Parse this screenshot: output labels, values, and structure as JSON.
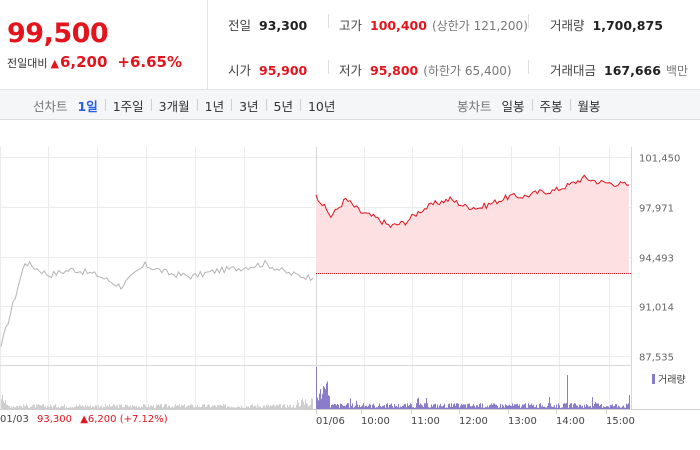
{
  "summary": {
    "price": "99,500",
    "change_label": "전일대비",
    "change_arrow": "▲",
    "change_amount": "6,200",
    "change_pct": "+6.65%",
    "stats": [
      {
        "label": "전일",
        "value": "93,300",
        "sub": ""
      },
      {
        "label": "고가",
        "value": "100,400",
        "sub": "(상한가 121,200)"
      },
      {
        "label": "거래량",
        "value": "1,700,875",
        "sub": ""
      },
      {
        "label": "시가",
        "value": "95,900",
        "sub": ""
      },
      {
        "label": "저가",
        "value": "95,800",
        "sub": "(하한가 65,400)"
      },
      {
        "label": "거래대금",
        "value": "167,666",
        "sub": "백만"
      }
    ]
  },
  "tabs": {
    "line_title": "선차트",
    "line_tabs": [
      "1일",
      "1주일",
      "3개월",
      "1년",
      "3년",
      "5년",
      "10년"
    ],
    "line_active": "1일",
    "candle_title": "봉차트",
    "candle_tabs": [
      "일봉",
      "주봉",
      "월봉"
    ]
  },
  "volume_legend": "거래량",
  "prev_day": {
    "date": "01/03",
    "price": "93,300",
    "change": "▲6,200 (+7.12%)"
  },
  "colors": {
    "up": "#e3141c",
    "active_tab": "#2762e3",
    "prev_line": "#b4b4b4",
    "today_line": "#e3141c",
    "today_fill": "#fde0e1",
    "volume": "#8a7cc8"
  },
  "chart_data": {
    "type": "line",
    "y_ticks": [
      "101,450",
      "97,971",
      "94,493",
      "91,014",
      "87,535"
    ],
    "ylim": [
      87535,
      101450
    ],
    "x_ticks": [
      "01/06",
      "10:00",
      "11:00",
      "12:00",
      "13:00",
      "14:00",
      "15:00"
    ],
    "baseline": 93300,
    "series": [
      {
        "x": [
          "01/03 09:00",
          "01/03 09:30",
          "01/03 10:00",
          "01/03 10:30",
          "01/03 11:00",
          "01/03 11:30",
          "01/03 12:00",
          "01/03 12:30",
          "01/03 13:00",
          "01/03 13:30",
          "01/03 14:00",
          "01/03 14:30",
          "01/03 15:00",
          "01/03 15:30"
        ],
        "values": [
          88200,
          94100,
          93200,
          93600,
          93200,
          92400,
          93900,
          93300,
          93100,
          93500,
          93700,
          94000,
          93300,
          93000
        ]
      },
      {
        "x": [
          "01/06 09:00",
          "01/06 09:05",
          "01/06 09:10",
          "01/06 09:20",
          "01/06 09:30",
          "01/06 09:40",
          "01/06 09:50",
          "01/06 10:00",
          "01/06 10:15",
          "01/06 10:30",
          "01/06 10:45",
          "01/06 11:00",
          "01/06 11:30",
          "01/06 12:00",
          "01/06 12:30",
          "01/06 13:00",
          "01/06 13:30",
          "01/06 14:00",
          "01/06 14:10",
          "01/06 14:30",
          "01/06 15:00",
          "01/06 15:20"
        ],
        "values": [
          98800,
          97300,
          98500,
          97600,
          97200,
          96600,
          96900,
          97700,
          98200,
          98500,
          98000,
          97900,
          98300,
          98700,
          98700,
          99000,
          99100,
          99500,
          100000,
          99700,
          99600,
          99500
        ]
      }
    ]
  }
}
